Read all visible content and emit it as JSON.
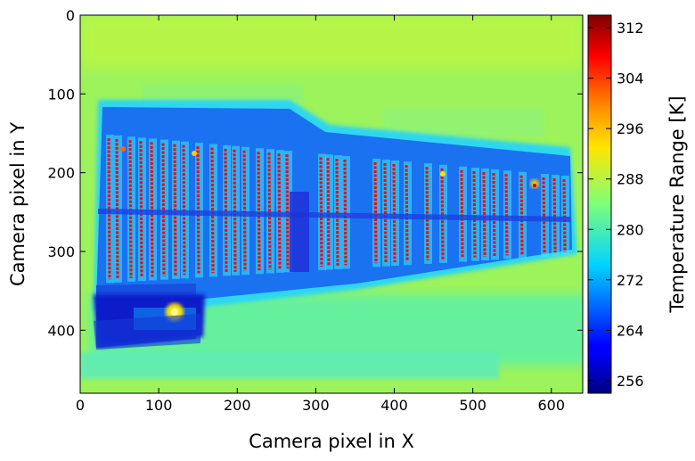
{
  "chart_data": {
    "type": "heatmap",
    "description_of_content": "thermal camera image",
    "xlabel": "Camera pixel in X",
    "ylabel": "Camera pixel in Y",
    "xlim": [
      0,
      640
    ],
    "ylim": [
      480,
      0
    ],
    "xticks": [
      0,
      100,
      200,
      300,
      400,
      500,
      600
    ],
    "yticks": [
      0,
      100,
      200,
      300,
      400
    ],
    "colorbar": {
      "label": "Temperature Range [K]",
      "range": [
        254,
        314
      ],
      "ticks": [
        256,
        264,
        272,
        280,
        288,
        296,
        304,
        312
      ],
      "colormap": "jet"
    },
    "regions": {
      "background_K": 287,
      "panel_K": 270,
      "hot_columns_K": 312,
      "cold_corner_K": 258,
      "hot_spot_K": 296
    },
    "grid": false
  }
}
